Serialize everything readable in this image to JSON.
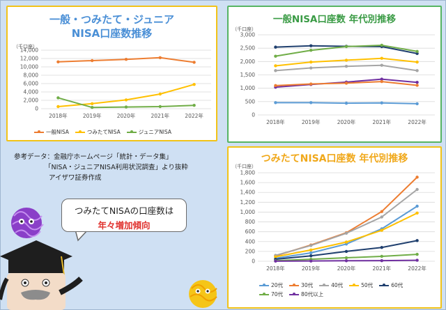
{
  "panels": {
    "p1": {
      "title_line1": "一般・つみたて・ジュニア",
      "title_line2": "NISA口座数推移"
    },
    "p2": {
      "title": "一般NISA口座数 年代別推移"
    },
    "p3": {
      "title": "つみたてNISA口座数 年代別推移"
    }
  },
  "reference": {
    "line1": "参考データ：金融庁ホームページ「統計・データ集」",
    "line2": "「NISA・ジュニアNISA利用状況調査」より抜粋",
    "line3": "アイザワ証券作成"
  },
  "bubble": {
    "line1": "つみたてNISAの口座数は",
    "line2": "年々増加傾向"
  },
  "chart_data": [
    {
      "id": "c1",
      "type": "line",
      "unit_label": "（千口座）",
      "categories": [
        "2018年",
        "2019年",
        "2020年",
        "2021年",
        "2022年"
      ],
      "ylim": [
        0,
        14000
      ],
      "yticks": [
        0,
        2000,
        4000,
        6000,
        8000,
        10000,
        12000,
        14000
      ],
      "ytick_labels": [
        "0",
        "2,000",
        "4,000",
        "6,000",
        "8,000",
        "10,000",
        "12,000",
        "14,000"
      ],
      "grid": true,
      "legend": "bottom",
      "series": [
        {
          "name": "一般NISA",
          "color": "#ed7d31",
          "values": [
            11200,
            11500,
            11800,
            12200,
            11100
          ]
        },
        {
          "name": "つみたてNISA",
          "color": "#ffc000",
          "values": [
            500,
            1200,
            2100,
            3500,
            5800
          ]
        },
        {
          "name": "ジュニアNISA",
          "color": "#70ad47",
          "values": [
            2600,
            300,
            400,
            500,
            800
          ]
        }
      ]
    },
    {
      "id": "c2",
      "type": "line",
      "unit_label": "（千口座）",
      "categories": [
        "2018年",
        "2019年",
        "2020年",
        "2021年",
        "2022年"
      ],
      "ylim": [
        0,
        3000
      ],
      "yticks": [
        0,
        500,
        1000,
        1500,
        2000,
        2500,
        3000
      ],
      "ytick_labels": [
        "0",
        "500",
        "1,000",
        "1,500",
        "2,000",
        "2,500",
        "3,000"
      ],
      "grid": true,
      "series": [
        {
          "name": "60代",
          "color": "#1f3f6e",
          "values": [
            2540,
            2590,
            2570,
            2560,
            2300
          ]
        },
        {
          "name": "70代",
          "color": "#70ad47",
          "values": [
            2200,
            2420,
            2560,
            2610,
            2380
          ]
        },
        {
          "name": "50代",
          "color": "#ffc000",
          "values": [
            1840,
            1980,
            2050,
            2120,
            1980
          ]
        },
        {
          "name": "40代",
          "color": "#a5a5a5",
          "values": [
            1660,
            1760,
            1820,
            1860,
            1660
          ]
        },
        {
          "name": "80代以上",
          "color": "#7030a0",
          "values": [
            1040,
            1140,
            1230,
            1340,
            1220
          ]
        },
        {
          "name": "30代",
          "color": "#ed7d31",
          "values": [
            1100,
            1160,
            1190,
            1250,
            1110
          ]
        },
        {
          "name": "20代",
          "color": "#5b9bd5",
          "values": [
            460,
            460,
            440,
            450,
            420
          ]
        }
      ]
    },
    {
      "id": "c3",
      "type": "line",
      "unit_label": "（千口座）",
      "categories": [
        "2018年",
        "2019年",
        "2020年",
        "2021年",
        "2022年"
      ],
      "ylim": [
        0,
        1800
      ],
      "yticks": [
        0,
        200,
        400,
        600,
        800,
        1000,
        1200,
        1400,
        1600,
        1800
      ],
      "ytick_labels": [
        "0",
        "200",
        "400",
        "600",
        "800",
        "1,000",
        "1,200",
        "1,400",
        "1,600",
        "1,800"
      ],
      "grid": true,
      "legend": "bottom",
      "series": [
        {
          "name": "20代",
          "color": "#5b9bd5",
          "values": [
            60,
            170,
            350,
            660,
            1120
          ]
        },
        {
          "name": "30代",
          "color": "#ed7d31",
          "values": [
            110,
            330,
            580,
            1010,
            1710
          ]
        },
        {
          "name": "40代",
          "color": "#a5a5a5",
          "values": [
            120,
            320,
            570,
            900,
            1460
          ]
        },
        {
          "name": "50代",
          "color": "#ffc000",
          "values": [
            90,
            230,
            390,
            630,
            980
          ]
        },
        {
          "name": "60代",
          "color": "#1f3f6e",
          "values": [
            40,
            110,
            200,
            280,
            420
          ]
        },
        {
          "name": "70代",
          "color": "#70ad47",
          "values": [
            10,
            40,
            70,
            100,
            140
          ]
        },
        {
          "name": "80代以上",
          "color": "#7030a0",
          "values": [
            2,
            5,
            10,
            12,
            20
          ]
        }
      ]
    }
  ]
}
